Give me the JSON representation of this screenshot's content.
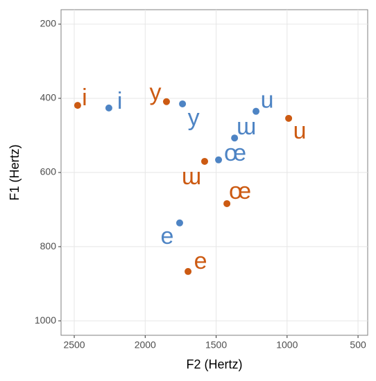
{
  "chart_data": {
    "type": "scatter",
    "x_label": "F2 (Hertz)",
    "y_label": "F1 (Hertz)",
    "xlim": [
      2593,
      432
    ],
    "ylim": [
      1039,
      161
    ],
    "xticks": [
      2500,
      2000,
      1500,
      1000,
      500
    ],
    "yticks": [
      200,
      400,
      600,
      800,
      1000
    ],
    "grid": true,
    "series": [
      {
        "color": "#4E84C4",
        "labels": [
          "i",
          "y",
          "u",
          "ɯ",
          "œ",
          "e"
        ],
        "x": [
          2256,
          1737,
          1219,
          1370,
          1483,
          1757
        ],
        "values": [
          426,
          415,
          435,
          507,
          566,
          736
        ]
      },
      {
        "color": "#CC5A12",
        "labels": [
          "i",
          "y",
          "u",
          "ɯ",
          "œ",
          "e"
        ],
        "x": [
          2476,
          1850,
          989,
          1581,
          1424,
          1698
        ],
        "values": [
          419,
          409,
          454,
          570,
          684,
          867
        ]
      }
    ]
  }
}
